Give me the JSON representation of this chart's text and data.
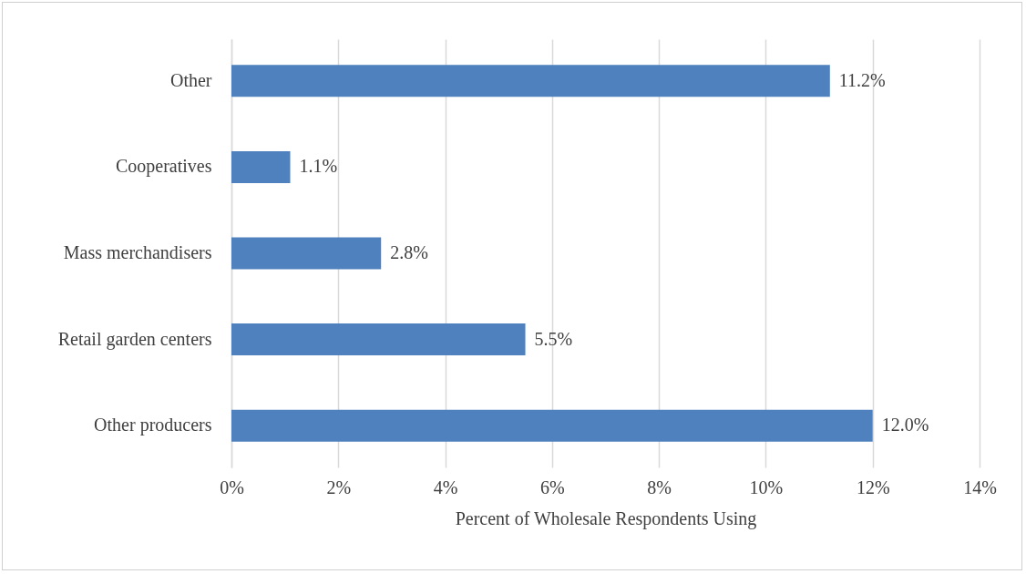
{
  "chart_data": {
    "type": "bar",
    "orientation": "horizontal",
    "xlabel": "Percent of Wholesale Respondents Using",
    "categories": [
      "Other",
      "Cooperatives",
      "Mass merchandisers",
      "Retail garden centers",
      "Other producers"
    ],
    "values": [
      11.2,
      1.1,
      2.8,
      5.5,
      12.0
    ],
    "value_labels": [
      "11.2%",
      "1.1%",
      "2.8%",
      "5.5%",
      "12.0%"
    ],
    "color": "#4e81bd",
    "xlim": [
      0,
      14
    ],
    "xticks": [
      {
        "value": 0,
        "label": "0%"
      },
      {
        "value": 2,
        "label": "2%"
      },
      {
        "value": 4,
        "label": "4%"
      },
      {
        "value": 6,
        "label": "6%"
      },
      {
        "value": 8,
        "label": "8%"
      },
      {
        "value": 10,
        "label": "10%"
      },
      {
        "value": 12,
        "label": "12%"
      },
      {
        "value": 14,
        "label": "14%"
      }
    ],
    "grid": "x"
  }
}
